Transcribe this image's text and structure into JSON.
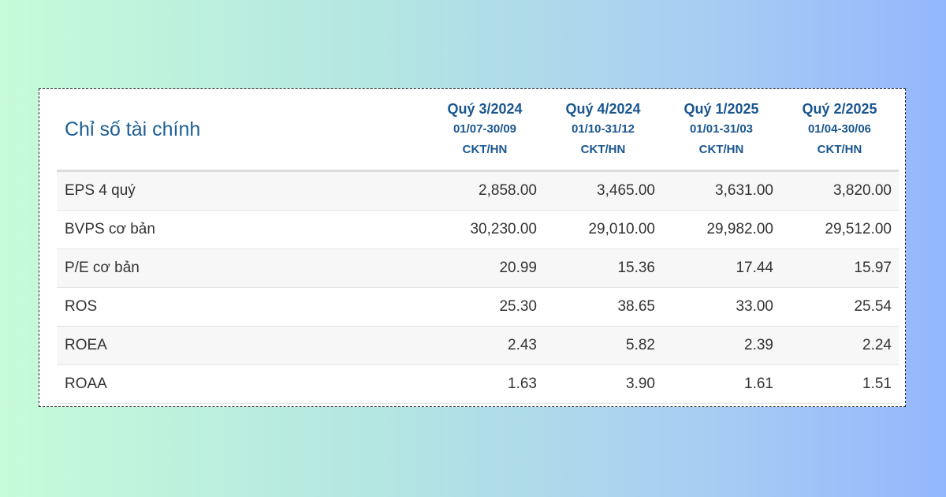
{
  "table": {
    "title": "Chỉ số tài chính",
    "columns": [
      {
        "quarter": "Quý 3/2024",
        "period": "01/07-30/09",
        "type": "CKT/HN"
      },
      {
        "quarter": "Quý 4/2024",
        "period": "01/10-31/12",
        "type": "CKT/HN"
      },
      {
        "quarter": "Quý 1/2025",
        "period": "01/01-31/03",
        "type": "CKT/HN"
      },
      {
        "quarter": "Quý 2/2025",
        "period": "01/04-30/06",
        "type": "CKT/HN"
      }
    ],
    "rows": [
      {
        "label": "EPS 4 quý",
        "values": [
          "2,858.00",
          "3,465.00",
          "3,631.00",
          "3,820.00"
        ]
      },
      {
        "label": "BVPS cơ bản",
        "values": [
          "30,230.00",
          "29,010.00",
          "29,982.00",
          "29,512.00"
        ]
      },
      {
        "label": "P/E cơ bản",
        "values": [
          "20.99",
          "15.36",
          "17.44",
          "15.97"
        ]
      },
      {
        "label": "ROS",
        "values": [
          "25.30",
          "38.65",
          "33.00",
          "25.54"
        ]
      },
      {
        "label": "ROEA",
        "values": [
          "2.43",
          "5.82",
          "2.39",
          "2.24"
        ]
      },
      {
        "label": "ROAA",
        "values": [
          "1.63",
          "3.90",
          "1.61",
          "1.51"
        ]
      }
    ]
  }
}
